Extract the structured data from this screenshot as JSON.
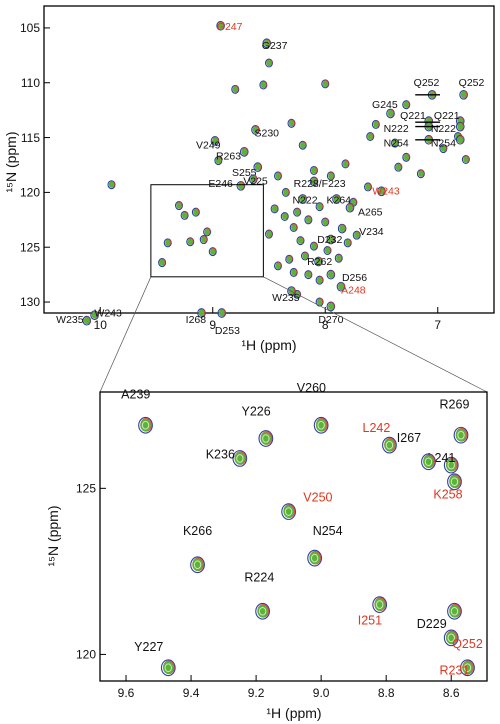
{
  "colors": {
    "green": "#5bb33a",
    "blue": "#2f3fa0",
    "red": "#d23a2a",
    "label_black": "#111111",
    "label_red": "#e0371f"
  },
  "chart_data": [
    {
      "type": "scatter",
      "title": "",
      "xlabel": "¹H (ppm)",
      "ylabel": "¹⁵N (ppm)",
      "xlim": [
        10.5,
        6.5
      ],
      "ylim": [
        131,
        103
      ],
      "x_ticks": [
        "10",
        "9",
        "8",
        "7"
      ],
      "y_ticks": [
        "105",
        "110",
        "115",
        "120",
        "125",
        "130"
      ],
      "x_tick_values": [
        10,
        9,
        8,
        7
      ],
      "y_tick_values": [
        105,
        110,
        115,
        120,
        125,
        130
      ],
      "inset_box": {
        "x": [
          9.55,
          8.55
        ],
        "y": [
          119.3,
          127.7
        ]
      },
      "peaks": [
        {
          "x": 8.93,
          "y": 104.8,
          "label": "G247",
          "lx": 8.85,
          "ly": 105.2,
          "color": "red"
        },
        {
          "x": 8.52,
          "y": 106.4,
          "label": "G237",
          "lx": 8.45,
          "ly": 106.9,
          "color": "black"
        },
        {
          "x": 7.05,
          "y": 111.1,
          "label": "Q252",
          "lx": 7.1,
          "ly": 110.3,
          "color": "black"
        },
        {
          "x": 6.77,
          "y": 111.1,
          "label": "Q252",
          "lx": 6.7,
          "ly": 110.3,
          "color": "black"
        },
        {
          "x": 7.42,
          "y": 112.8,
          "label": "G245",
          "lx": 7.47,
          "ly": 112.3,
          "color": "black"
        },
        {
          "x": 7.08,
          "y": 113.5,
          "label": "Q221",
          "lx": 7.22,
          "ly": 113.3,
          "color": "black"
        },
        {
          "x": 6.8,
          "y": 113.5,
          "label": "Q221",
          "lx": 6.92,
          "ly": 113.3,
          "color": "black"
        },
        {
          "x": 7.08,
          "y": 114.0,
          "label": "N222",
          "lx": 7.37,
          "ly": 114.5,
          "color": "black"
        },
        {
          "x": 6.8,
          "y": 114.0,
          "label": "N222",
          "lx": 6.95,
          "ly": 114.5,
          "color": "black"
        },
        {
          "x": 7.08,
          "y": 115.2,
          "label": "N254",
          "lx": 7.37,
          "ly": 115.8,
          "color": "black"
        },
        {
          "x": 6.8,
          "y": 115.2,
          "label": "N254",
          "lx": 6.95,
          "ly": 115.8,
          "color": "black"
        },
        {
          "x": 8.62,
          "y": 114.3,
          "label": "S230",
          "lx": 8.52,
          "ly": 114.9,
          "color": "black"
        },
        {
          "x": 8.98,
          "y": 115.3,
          "label": "V249",
          "lx": 9.04,
          "ly": 116.0,
          "color": "black"
        },
        {
          "x": 8.72,
          "y": 116.3,
          "label": "R263",
          "lx": 8.86,
          "ly": 117.0,
          "color": "black"
        },
        {
          "x": 8.6,
          "y": 117.7,
          "label": "S255",
          "lx": 8.72,
          "ly": 118.5,
          "color": "black"
        },
        {
          "x": 8.64,
          "y": 118.8,
          "label": "V225",
          "lx": 8.62,
          "ly": 119.3,
          "color": "black"
        },
        {
          "x": 8.75,
          "y": 119.4,
          "label": "E246",
          "lx": 8.93,
          "ly": 119.5,
          "color": "black"
        },
        {
          "x": 8.1,
          "y": 119.0,
          "label": "R228/F223",
          "lx": 8.05,
          "ly": 119.5,
          "color": "black"
        },
        {
          "x": 8.2,
          "y": 120.6,
          "label": "N222",
          "lx": 8.18,
          "ly": 121.0,
          "color": "black"
        },
        {
          "x": 7.9,
          "y": 120.6,
          "label": "K264",
          "lx": 7.88,
          "ly": 121.0,
          "color": "black"
        },
        {
          "x": 7.5,
          "y": 119.9,
          "label": "W243",
          "lx": 7.46,
          "ly": 120.2,
          "color": "red"
        },
        {
          "x": 7.78,
          "y": 121.4,
          "label": "A265",
          "lx": 7.6,
          "ly": 122.1,
          "color": "black"
        },
        {
          "x": 7.85,
          "y": 123.3,
          "label": "V234",
          "lx": 7.59,
          "ly": 123.9,
          "color": "black"
        },
        {
          "x": 7.95,
          "y": 124.3,
          "label": "D232",
          "lx": 7.96,
          "ly": 124.6,
          "color": "black"
        },
        {
          "x": 8.06,
          "y": 126.3,
          "label": "R262",
          "lx": 8.05,
          "ly": 126.6,
          "color": "black"
        },
        {
          "x": 7.95,
          "y": 127.5,
          "label": "D256",
          "lx": 7.74,
          "ly": 128.1,
          "color": "black"
        },
        {
          "x": 7.86,
          "y": 128.6,
          "label": "A248",
          "lx": 7.75,
          "ly": 129.2,
          "color": "red"
        },
        {
          "x": 8.3,
          "y": 129.0,
          "label": "W235",
          "lx": 8.35,
          "ly": 129.9,
          "color": "black"
        },
        {
          "x": 7.95,
          "y": 130.4,
          "label": "D270",
          "lx": 7.95,
          "ly": 131.9,
          "color": "black"
        },
        {
          "x": 9.1,
          "y": 131.0,
          "label": "I268",
          "lx": 9.15,
          "ly": 131.9,
          "color": "black"
        },
        {
          "x": 8.92,
          "y": 131.0,
          "label": "D253",
          "lx": 8.87,
          "ly": 132.9,
          "color": "black"
        },
        {
          "x": 10.05,
          "y": 131.2,
          "label": "W243",
          "lx": 9.93,
          "ly": 131.3,
          "color": "black"
        },
        {
          "x": 10.12,
          "y": 131.7,
          "label": "W235",
          "lx": 10.27,
          "ly": 131.9,
          "color": "black"
        }
      ]
    },
    {
      "type": "scatter",
      "title": "",
      "xlabel": "¹H (ppm)",
      "ylabel": "¹⁵N (ppm)",
      "xlim": [
        9.68,
        8.49
      ],
      "ylim": [
        119.2,
        127.9
      ],
      "x_ticks": [
        "9.6",
        "9.4",
        "9.2",
        "9.0",
        "8.8",
        "8.6"
      ],
      "y_ticks": [
        "120",
        "125"
      ],
      "x_tick_values": [
        9.6,
        9.4,
        9.2,
        9.0,
        8.8,
        8.6
      ],
      "y_tick_values": [
        120,
        125
      ],
      "peaks": [
        {
          "x": 9.47,
          "y": 119.6,
          "label": "Y227",
          "lx": 9.53,
          "ly": 120.1,
          "color": "black"
        },
        {
          "x": 9.18,
          "y": 121.3,
          "label": "R224",
          "lx": 9.19,
          "ly": 122.2,
          "color": "black"
        },
        {
          "x": 9.38,
          "y": 122.7,
          "label": "K266",
          "lx": 9.38,
          "ly": 123.6,
          "color": "black"
        },
        {
          "x": 9.02,
          "y": 122.9,
          "label": "N254",
          "lx": 8.98,
          "ly": 123.6,
          "color": "black"
        },
        {
          "x": 8.82,
          "y": 121.5,
          "label": "I251",
          "lx": 8.85,
          "ly": 120.9,
          "color": "red"
        },
        {
          "x": 8.55,
          "y": 119.6,
          "label": "R231",
          "lx": 8.59,
          "ly": 119.4,
          "color": "red"
        },
        {
          "x": 8.6,
          "y": 120.5,
          "label": "D229",
          "lx": 8.66,
          "ly": 120.8,
          "color": "black"
        },
        {
          "x": 8.59,
          "y": 121.3,
          "label": "Q252",
          "lx": 8.55,
          "ly": 120.2,
          "color": "red"
        },
        {
          "x": 9.1,
          "y": 124.3,
          "label": "V250",
          "lx": 9.01,
          "ly": 124.6,
          "color": "red"
        },
        {
          "x": 8.59,
          "y": 125.2,
          "label": "K258",
          "lx": 8.61,
          "ly": 124.7,
          "color": "red"
        },
        {
          "x": 8.6,
          "y": 125.7,
          "label": "L241",
          "lx": 8.63,
          "ly": 125.8,
          "color": "black"
        },
        {
          "x": 8.67,
          "y": 125.8,
          "label": "I267",
          "lx": 8.73,
          "ly": 126.4,
          "color": "black"
        },
        {
          "x": 8.57,
          "y": 126.6,
          "label": "R269",
          "lx": 8.59,
          "ly": 127.4,
          "color": "black"
        },
        {
          "x": 9.25,
          "y": 125.9,
          "label": "K236",
          "lx": 9.31,
          "ly": 125.9,
          "color": "black"
        },
        {
          "x": 9.17,
          "y": 126.5,
          "label": "Y226",
          "lx": 9.2,
          "ly": 127.2,
          "color": "black"
        },
        {
          "x": 9.0,
          "y": 126.9,
          "label": "V260",
          "lx": 9.03,
          "ly": 127.9,
          "color": "black"
        },
        {
          "x": 9.54,
          "y": 126.9,
          "label": "A239",
          "lx": 9.57,
          "ly": 127.7,
          "color": "black"
        },
        {
          "x": 8.79,
          "y": 126.3,
          "label": "L242",
          "lx": 8.83,
          "ly": 126.7,
          "color": "red"
        }
      ]
    }
  ],
  "background_peaks": [
    [
      9.9,
      119.3
    ],
    [
      9.3,
      121.2
    ],
    [
      9.25,
      122.1
    ],
    [
      9.15,
      121.8
    ],
    [
      9.05,
      123.6
    ],
    [
      9.2,
      124.5
    ],
    [
      9.4,
      124.6
    ],
    [
      9.45,
      126.4
    ],
    [
      9.08,
      124.3
    ],
    [
      9.0,
      125.4
    ],
    [
      8.95,
      117.1
    ],
    [
      8.8,
      110.6
    ],
    [
      8.55,
      110.2
    ],
    [
      8.3,
      113.7
    ],
    [
      8.2,
      115.7
    ],
    [
      8.1,
      118.0
    ],
    [
      8.42,
      118.5
    ],
    [
      8.35,
      120.0
    ],
    [
      8.25,
      121.8
    ],
    [
      8.15,
      122.5
    ],
    [
      8.05,
      121.3
    ],
    [
      8.0,
      122.7
    ],
    [
      8.28,
      123.2
    ],
    [
      8.22,
      124.4
    ],
    [
      8.1,
      124.9
    ],
    [
      8.18,
      125.8
    ],
    [
      8.32,
      126.1
    ],
    [
      7.98,
      125.3
    ],
    [
      7.88,
      126.0
    ],
    [
      7.8,
      124.6
    ],
    [
      7.72,
      123.9
    ],
    [
      8.36,
      122.2
    ],
    [
      8.45,
      121.5
    ],
    [
      8.5,
      123.8
    ],
    [
      8.28,
      127.3
    ],
    [
      8.05,
      128.0
    ],
    [
      7.95,
      118.5
    ],
    [
      7.82,
      117.4
    ],
    [
      7.35,
      117.7
    ],
    [
      7.6,
      114.9
    ],
    [
      7.55,
      113.8
    ],
    [
      7.38,
      115.5
    ],
    [
      7.28,
      116.8
    ],
    [
      7.15,
      118.3
    ],
    [
      6.95,
      116.0
    ],
    [
      6.82,
      114.9
    ],
    [
      6.75,
      117.0
    ],
    [
      7.62,
      119.5
    ],
    [
      8.0,
      110.1
    ],
    [
      8.5,
      108.2
    ],
    [
      7.28,
      112.0
    ],
    [
      7.75,
      120.9
    ],
    [
      8.42,
      126.7
    ],
    [
      8.15,
      127.5
    ],
    [
      8.25,
      129.3
    ],
    [
      8.05,
      130.0
    ]
  ]
}
